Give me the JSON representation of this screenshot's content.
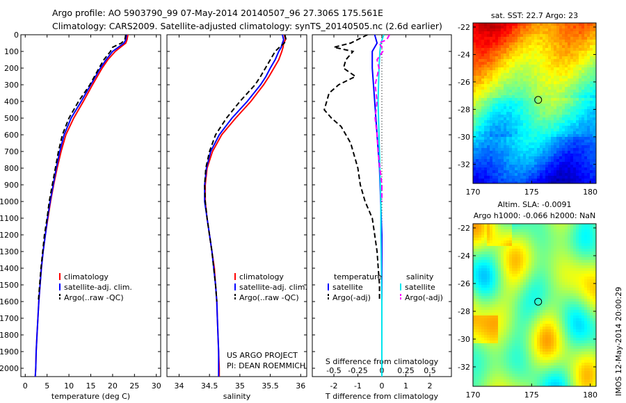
{
  "header": {
    "line1": "Argo profile: AO 5903790_99 07-May-2014 20140507_96 27.306S 175.561E",
    "line2": "Climatology: CARS2009. Satellite-adjusted climatology: synTS_20140505.nc (2.6d earlier)"
  },
  "credits": {
    "line1": "US ARGO PROJECT",
    "line2": "PI: DEAN ROEMMICH"
  },
  "timestamp": "IMOS 12-May-2014 20:00:29",
  "colors": {
    "climatology": "#ff0000",
    "satellite": "#0000ff",
    "argo": "#000000",
    "sat_diff_s": "#00e5ee",
    "argo_diff_s": "#ff00ff"
  },
  "chart_data": [
    {
      "id": "temperature",
      "type": "line",
      "xlabel": "temperature (deg C)",
      "xlim": [
        -1,
        31
      ],
      "ylim": [
        2050,
        0
      ],
      "x_ticks": [
        0,
        5,
        10,
        15,
        20,
        25,
        30
      ],
      "y_ticks": [
        0,
        100,
        200,
        300,
        400,
        500,
        600,
        700,
        800,
        900,
        1000,
        1100,
        1200,
        1300,
        1400,
        1500,
        1600,
        1700,
        1800,
        1900,
        2000
      ],
      "legend": [
        "climatology",
        "satellite-adj. clim.",
        "Argo(..raw -QC)"
      ],
      "series": [
        {
          "name": "climatology",
          "style": "solid",
          "color": "#ff0000",
          "depth": [
            0,
            30,
            50,
            75,
            100,
            150,
            200,
            300,
            400,
            500,
            600,
            700,
            800,
            900,
            1000,
            1100,
            1200,
            1300,
            1400,
            1500,
            1600,
            1700,
            1800,
            1900,
            2000,
            2050
          ],
          "values": [
            23.5,
            23.3,
            23.0,
            21.8,
            20.6,
            18.9,
            17.6,
            15.4,
            13.3,
            11.1,
            9.3,
            8.2,
            7.3,
            6.5,
            5.8,
            5.2,
            4.6,
            4.1,
            3.7,
            3.4,
            3.1,
            2.9,
            2.7,
            2.5,
            2.4,
            2.3
          ]
        },
        {
          "name": "satellite-adj. clim.",
          "style": "solid",
          "color": "#0000ff",
          "depth": [
            0,
            30,
            50,
            75,
            100,
            150,
            200,
            300,
            400,
            500,
            600,
            700,
            800,
            900,
            1000,
            1100,
            1200,
            1300,
            1400,
            1500,
            1600,
            1700,
            1800,
            1900,
            2000,
            2050
          ],
          "values": [
            23.2,
            23.0,
            22.6,
            21.3,
            20.0,
            18.5,
            17.2,
            15.0,
            12.8,
            10.5,
            8.9,
            7.9,
            7.1,
            6.4,
            5.7,
            5.1,
            4.6,
            4.1,
            3.7,
            3.4,
            3.1,
            2.9,
            2.7,
            2.5,
            2.4,
            2.3
          ]
        },
        {
          "name": "Argo(..raw -QC)",
          "style": "dash",
          "color": "#000000",
          "depth": [
            0,
            30,
            50,
            75,
            100,
            150,
            200,
            300,
            400,
            500,
            600,
            700,
            800,
            900,
            1000,
            1100,
            1200,
            1300,
            1400,
            1500,
            1600
          ],
          "values": [
            23.0,
            22.8,
            22.0,
            20.0,
            19.5,
            18.0,
            16.9,
            14.8,
            12.2,
            10.0,
            8.5,
            7.6,
            6.9,
            6.2,
            5.5,
            5.0,
            4.4,
            4.0,
            3.6,
            3.3,
            3.0
          ]
        }
      ]
    },
    {
      "id": "salinity",
      "type": "line",
      "xlabel": "salinity",
      "xlim": [
        33.8,
        36.1
      ],
      "ylim": [
        2050,
        0
      ],
      "x_ticks": [
        34,
        34.5,
        35,
        35.5,
        36
      ],
      "x_tick_labels": [
        "34",
        "34.5",
        "35",
        "35.5",
        "36"
      ],
      "legend": [
        "climatology",
        "satellite-adj. clim.",
        "Argo(..raw -QC)"
      ],
      "series": [
        {
          "name": "climatology",
          "style": "solid",
          "color": "#ff0000",
          "depth": [
            0,
            30,
            50,
            75,
            100,
            150,
            200,
            250,
            300,
            400,
            500,
            600,
            700,
            800,
            900,
            1000,
            1100,
            1200,
            1300,
            1400,
            1500,
            1600,
            1700,
            1800,
            1900,
            2000,
            2050
          ],
          "values": [
            35.73,
            35.75,
            35.72,
            35.71,
            35.69,
            35.64,
            35.56,
            35.48,
            35.39,
            35.18,
            34.93,
            34.7,
            34.55,
            34.46,
            34.43,
            34.43,
            34.46,
            34.5,
            34.54,
            34.58,
            34.6,
            34.62,
            34.63,
            34.64,
            34.65,
            34.66,
            34.66
          ]
        },
        {
          "name": "satellite-adj. clim.",
          "style": "solid",
          "color": "#0000ff",
          "depth": [
            0,
            30,
            50,
            75,
            100,
            150,
            200,
            250,
            300,
            400,
            500,
            600,
            700,
            800,
            900,
            1000,
            1100,
            1200,
            1300,
            1400,
            1500,
            1600,
            1700,
            1800,
            1900,
            2000,
            2050
          ],
          "values": [
            35.7,
            35.72,
            35.7,
            35.68,
            35.64,
            35.58,
            35.5,
            35.43,
            35.34,
            35.12,
            34.87,
            34.66,
            34.52,
            34.45,
            34.42,
            34.42,
            34.46,
            34.5,
            34.54,
            34.57,
            34.6,
            34.62,
            34.63,
            34.64,
            34.65,
            34.65,
            34.65
          ]
        },
        {
          "name": "Argo(..raw -QC)",
          "style": "dash",
          "color": "#000000",
          "depth": [
            0,
            30,
            50,
            75,
            100,
            150,
            200,
            250,
            300,
            400,
            500,
            600,
            700,
            800,
            900,
            1000,
            1100,
            1200,
            1300,
            1400,
            1500,
            1600
          ],
          "values": [
            35.74,
            35.76,
            35.73,
            35.65,
            35.58,
            35.5,
            35.42,
            35.34,
            35.25,
            35.0,
            34.78,
            34.6,
            34.5,
            34.44,
            34.42,
            34.43,
            34.46,
            34.5,
            34.54,
            34.57,
            34.6,
            34.62
          ]
        }
      ]
    },
    {
      "id": "differences",
      "type": "line",
      "xlabel": "T difference from climatology",
      "top_xlabel": "S difference from climatology",
      "xlim": [
        -2.9,
        2.9
      ],
      "ylim": [
        2050,
        0
      ],
      "x_ticks": [
        -2,
        -1,
        0,
        1,
        2
      ],
      "top_ticks": [
        -0.5,
        -0.25,
        0,
        0.25,
        0.5
      ],
      "legend_temperature": [
        "temperature",
        "satellite",
        "Argo(-adj)"
      ],
      "legend_salinity": [
        "salinity",
        "satellite",
        "Argo(-adj)"
      ],
      "series": [
        {
          "name": "T satellite",
          "style": "solid",
          "color": "#0000ff",
          "depth": [
            0,
            50,
            100,
            200,
            400,
            600,
            800,
            1000,
            1200,
            1600,
            2000,
            2050
          ],
          "values": [
            -0.3,
            -0.2,
            -0.4,
            -0.4,
            -0.3,
            -0.2,
            -0.1,
            -0.05,
            0,
            0,
            0,
            0
          ]
        },
        {
          "name": "T Argo(-adj)",
          "style": "dash",
          "color": "#000000",
          "depth": [
            0,
            50,
            75,
            100,
            150,
            200,
            250,
            300,
            350,
            400,
            450,
            500,
            550,
            600,
            650,
            700,
            750,
            800,
            900,
            1000,
            1100,
            1200,
            1300,
            1400,
            1500,
            1600
          ],
          "values": [
            -0.6,
            -1.3,
            -2.0,
            -1.2,
            -1.5,
            -1.6,
            -1.1,
            -1.8,
            -2.2,
            -2.3,
            -2.4,
            -2.1,
            -1.7,
            -1.5,
            -1.3,
            -1.2,
            -1.1,
            -1.0,
            -0.9,
            -0.7,
            -0.4,
            -0.3,
            -0.2,
            -0.15,
            -0.1,
            -0.1
          ]
        },
        {
          "name": "S satellite",
          "style": "solid",
          "color": "#00e5ee",
          "depth": [
            0,
            50,
            100,
            200,
            400,
            600,
            800,
            1000,
            1200,
            1600,
            2000,
            2050
          ],
          "values": [
            0.02,
            -0.01,
            -0.02,
            -0.03,
            -0.04,
            -0.03,
            -0.02,
            -0.01,
            -0.01,
            0,
            0,
            0
          ]
        },
        {
          "name": "S Argo(-adj)",
          "style": "dash",
          "color": "#ff00ff",
          "depth": [
            0,
            30,
            50,
            75,
            100,
            150,
            200,
            300,
            400,
            500,
            600,
            700,
            800,
            900,
            1000
          ],
          "values": [
            0.08,
            0.05,
            -0.03,
            0,
            0.01,
            -0.05,
            -0.03,
            -0.07,
            -0.05,
            -0.07,
            -0.05,
            -0.04,
            -0.02,
            0,
            0
          ]
        }
      ]
    },
    {
      "id": "sst_map",
      "type": "heatmap",
      "title": "sat. SST: 22.7 Argo: 23",
      "xlim": [
        170,
        180.5
      ],
      "ylim": [
        -33.4,
        -21.7
      ],
      "x_ticks": [
        170,
        175,
        180
      ],
      "y_ticks": [
        -22,
        -24,
        -26,
        -28,
        -30,
        -32
      ],
      "marker": {
        "lon": 175.56,
        "lat": -27.31
      },
      "colorscale": "jet"
    },
    {
      "id": "sla_map",
      "type": "heatmap",
      "title": "Altim. SLA: -0.0091",
      "subtitle": "Argo h1000: -0.066 h2000: NaN",
      "xlim": [
        170,
        180.5
      ],
      "ylim": [
        -33.4,
        -21.7
      ],
      "x_ticks": [
        170,
        175,
        180
      ],
      "y_ticks": [
        -22,
        -24,
        -26,
        -28,
        -30,
        -32
      ],
      "marker": {
        "lon": 175.56,
        "lat": -27.31
      },
      "colorscale": "jet"
    }
  ]
}
